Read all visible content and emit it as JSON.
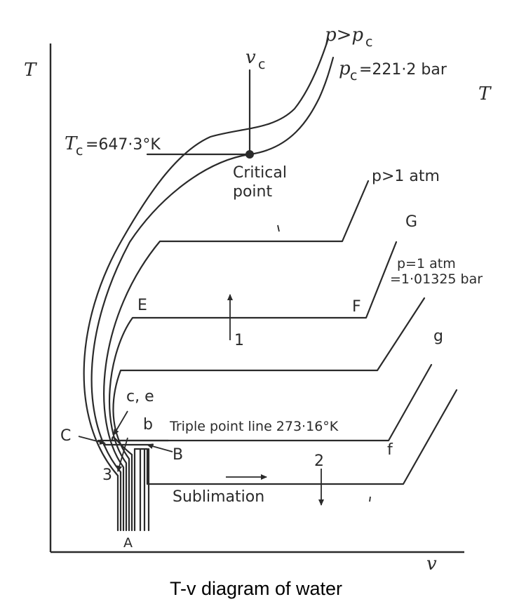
{
  "labels": {
    "t_axis_left": "T",
    "t_axis_right": "T",
    "v_axis": "v",
    "vc": "v",
    "vc_sub": "c",
    "p_gt_pc": "p>p",
    "p_gt_pc_sub": "c",
    "pc": "p",
    "pc_sub": "c",
    "pc_value": "=221·2 bar",
    "tc": "T",
    "tc_sub": "c",
    "tc_value": "=647·3°K",
    "critical_line1": "Critical",
    "critical_line2": "point",
    "p_gt_1atm": "p>1 atm",
    "G": "G",
    "p_eq_1atm_line1": "p=1 atm",
    "p_eq_1atm_line2": "=1·01325 bar",
    "E": "E",
    "F": "F",
    "one": "1",
    "g": "g",
    "ce": "c, e",
    "b": "b",
    "triple_point": "Triple point line 273·16°K",
    "C": "C",
    "B": "B",
    "three": "3",
    "two": "2",
    "f": "f",
    "sublimation": "Sublimation",
    "A": "A"
  },
  "caption": "T-v diagram of water"
}
